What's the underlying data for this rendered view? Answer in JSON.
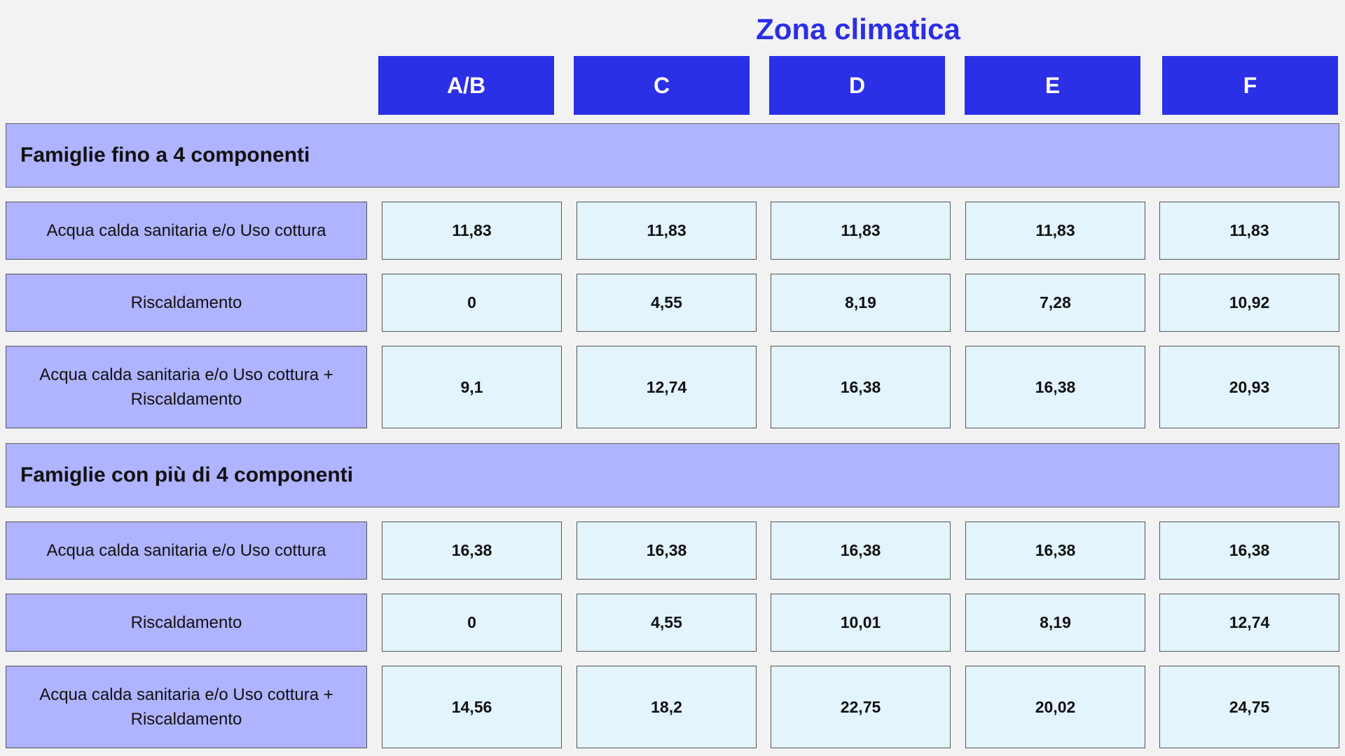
{
  "title": "Zona climatica",
  "zones": [
    "A/B",
    "C",
    "D",
    "E",
    "F"
  ],
  "groups": [
    {
      "label": "Famiglie fino a 4 componenti",
      "rows": [
        {
          "label": "Acqua calda sanitaria e/o Uso cottura",
          "values": [
            "11,83",
            "11,83",
            "11,83",
            "11,83",
            "11,83"
          ]
        },
        {
          "label": "Riscaldamento",
          "values": [
            "0",
            "4,55",
            "8,19",
            "7,28",
            "10,92"
          ]
        },
        {
          "label": "Acqua calda sanitaria e/o Uso cottura + Riscaldamento",
          "values": [
            "9,1",
            "12,74",
            "16,38",
            "16,38",
            "20,93"
          ]
        }
      ]
    },
    {
      "label": "Famiglie con più di 4 componenti",
      "rows": [
        {
          "label": "Acqua calda sanitaria e/o Uso cottura",
          "values": [
            "16,38",
            "16,38",
            "16,38",
            "16,38",
            "16,38"
          ]
        },
        {
          "label": "Riscaldamento",
          "values": [
            "0",
            "4,55",
            "10,01",
            "8,19",
            "12,74"
          ]
        },
        {
          "label": "Acqua calda sanitaria e/o Uso cottura + Riscaldamento",
          "values": [
            "14,56",
            "18,2",
            "22,75",
            "20,02",
            "24,75"
          ]
        }
      ]
    }
  ]
}
